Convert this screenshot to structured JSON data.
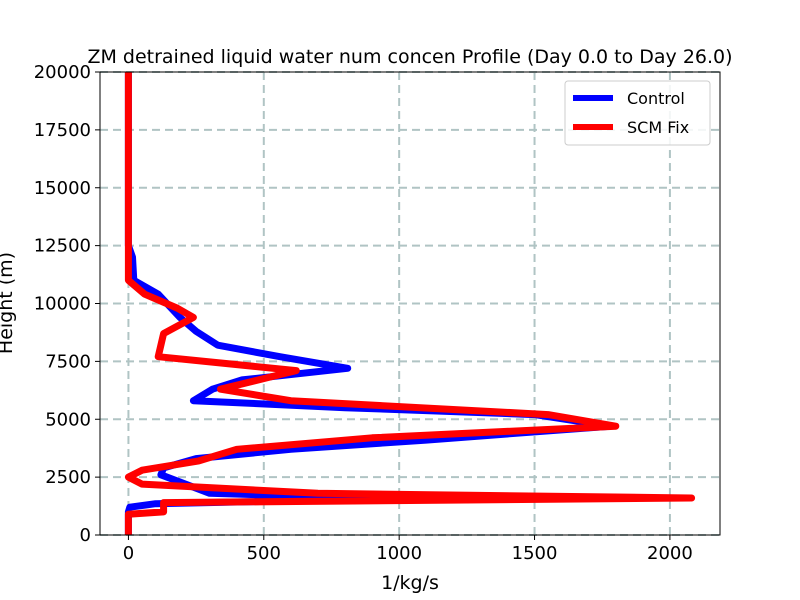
{
  "chart_data": {
    "type": "line",
    "title": "ZM detrained liquid water num concen Profile (Day 0.0 to Day 26.0)",
    "xlabel": "1/kg/s",
    "ylabel": "Height (m)",
    "xlim": [
      -105,
      2185
    ],
    "ylim": [
      0,
      20000
    ],
    "xticks": [
      0,
      500,
      1000,
      1500,
      2000
    ],
    "yticks": [
      0,
      2500,
      5000,
      7500,
      10000,
      12500,
      15000,
      17500,
      20000
    ],
    "grid": true,
    "legend_position": "top-right",
    "series": [
      {
        "name": "Control",
        "color": "#0000ff",
        "points": [
          [
            0,
            0
          ],
          [
            0,
            500
          ],
          [
            0,
            1000
          ],
          [
            5,
            1200
          ],
          [
            100,
            1350
          ],
          [
            700,
            1500
          ],
          [
            900,
            1600
          ],
          [
            300,
            1800
          ],
          [
            120,
            2600
          ],
          [
            130,
            2900
          ],
          [
            250,
            3300
          ],
          [
            600,
            3700
          ],
          [
            1100,
            4100
          ],
          [
            1780,
            4700
          ],
          [
            1500,
            5200
          ],
          [
            800,
            5500
          ],
          [
            240,
            5800
          ],
          [
            310,
            6300
          ],
          [
            420,
            6700
          ],
          [
            810,
            7200
          ],
          [
            560,
            7700
          ],
          [
            330,
            8200
          ],
          [
            250,
            8800
          ],
          [
            190,
            9400
          ],
          [
            110,
            10400
          ],
          [
            20,
            11000
          ],
          [
            15,
            12000
          ],
          [
            0,
            12500
          ],
          [
            0,
            15000
          ],
          [
            0,
            17500
          ],
          [
            0,
            20000
          ]
        ]
      },
      {
        "name": "SCM Fix",
        "color": "#ff0000",
        "points": [
          [
            0,
            0
          ],
          [
            0,
            500
          ],
          [
            0,
            900
          ],
          [
            130,
            1000
          ],
          [
            130,
            1400
          ],
          [
            2080,
            1600
          ],
          [
            700,
            1800
          ],
          [
            50,
            2200
          ],
          [
            0,
            2500
          ],
          [
            50,
            2800
          ],
          [
            260,
            3200
          ],
          [
            400,
            3700
          ],
          [
            900,
            4200
          ],
          [
            1800,
            4700
          ],
          [
            1550,
            5200
          ],
          [
            600,
            5800
          ],
          [
            340,
            6300
          ],
          [
            620,
            7100
          ],
          [
            110,
            7700
          ],
          [
            130,
            8700
          ],
          [
            240,
            9400
          ],
          [
            180,
            9800
          ],
          [
            60,
            10400
          ],
          [
            0,
            11000
          ],
          [
            0,
            12500
          ],
          [
            0,
            15000
          ],
          [
            0,
            17500
          ],
          [
            0,
            20000
          ]
        ]
      }
    ]
  }
}
